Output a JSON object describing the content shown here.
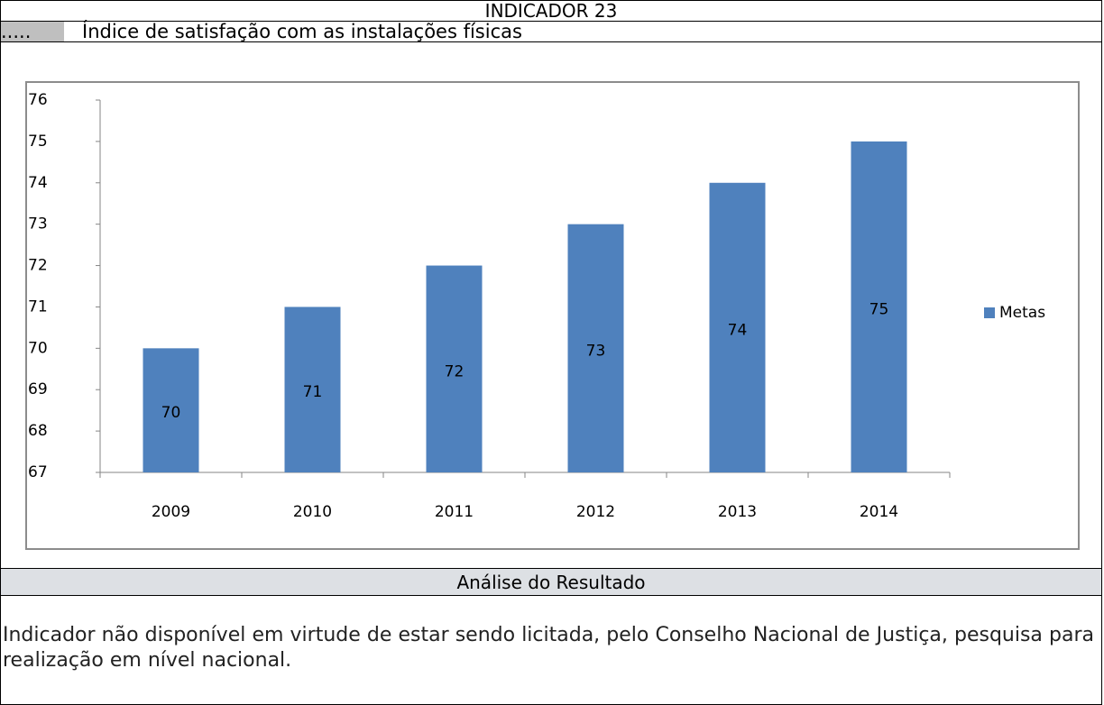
{
  "header": {
    "title": "INDICADOR 23",
    "prefix": ".....",
    "subtitle": "Índice de satisfação com as instalações físicas"
  },
  "chart_data": {
    "type": "bar",
    "categories": [
      "2009",
      "2010",
      "2011",
      "2012",
      "2013",
      "2014"
    ],
    "series": [
      {
        "name": "Metas",
        "color": "#4f81bd",
        "values": [
          70,
          71,
          72,
          73,
          74,
          75
        ]
      }
    ],
    "ylim": [
      67,
      76
    ],
    "yticks": [
      67,
      68,
      69,
      70,
      71,
      72,
      73,
      74,
      75,
      76
    ],
    "legend": "right"
  },
  "analysis": {
    "title": "Análise do Resultado",
    "text": "Indicador não disponível em virtude de estar sendo licitada, pelo Conselho Nacional de Justiça, pesquisa para realização em nível nacional."
  }
}
